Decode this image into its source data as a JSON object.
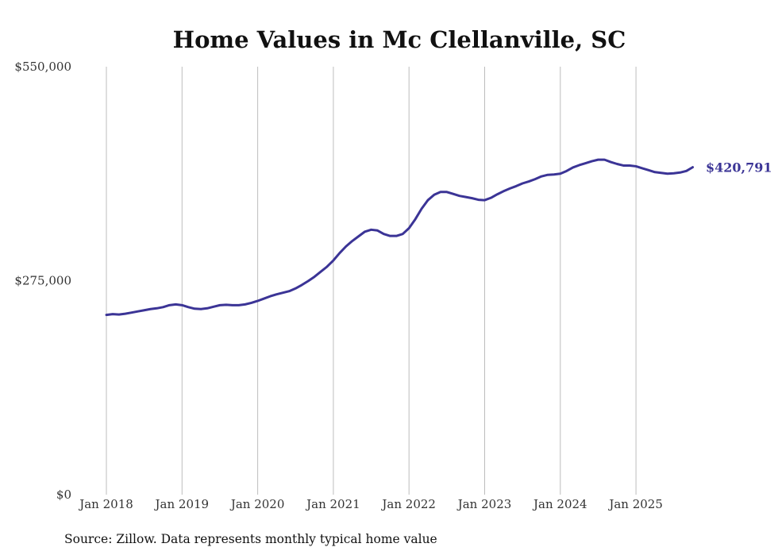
{
  "chart_data": {
    "type": "line",
    "title": "Home Values in Mc Clellanville, SC",
    "xlabel": "",
    "ylabel": "",
    "ylim": [
      0,
      550000
    ],
    "y_ticks": [
      {
        "value": 0,
        "label": "$0"
      },
      {
        "value": 275000,
        "label": "$275,000"
      },
      {
        "value": 550000,
        "label": "$550,000"
      }
    ],
    "x_range": [
      "2018-01",
      "2025-10"
    ],
    "x_ticks": [
      {
        "date": "2018-01",
        "label": "Jan 2018"
      },
      {
        "date": "2019-01",
        "label": "Jan 2019"
      },
      {
        "date": "2020-01",
        "label": "Jan 2020"
      },
      {
        "date": "2021-01",
        "label": "Jan 2021"
      },
      {
        "date": "2022-01",
        "label": "Jan 2022"
      },
      {
        "date": "2023-01",
        "label": "Jan 2023"
      },
      {
        "date": "2024-01",
        "label": "Jan 2024"
      },
      {
        "date": "2025-01",
        "label": "Jan 2025"
      }
    ],
    "grid": {
      "vertical": true,
      "horizontal": false
    },
    "line_color": "#3b3496",
    "series": [
      {
        "points": [
          [
            "2018-01",
            231000
          ],
          [
            "2018-02",
            232000
          ],
          [
            "2018-03",
            231500
          ],
          [
            "2018-04",
            232500
          ],
          [
            "2018-05",
            234000
          ],
          [
            "2018-06",
            235500
          ],
          [
            "2018-07",
            237000
          ],
          [
            "2018-08",
            238500
          ],
          [
            "2018-09",
            239500
          ],
          [
            "2018-10",
            241000
          ],
          [
            "2018-11",
            243500
          ],
          [
            "2018-12",
            244500
          ],
          [
            "2019-01",
            243500
          ],
          [
            "2019-02",
            241000
          ],
          [
            "2019-03",
            239000
          ],
          [
            "2019-04",
            238500
          ],
          [
            "2019-05",
            239500
          ],
          [
            "2019-06",
            241500
          ],
          [
            "2019-07",
            243500
          ],
          [
            "2019-08",
            244000
          ],
          [
            "2019-09",
            243500
          ],
          [
            "2019-10",
            243500
          ],
          [
            "2019-11",
            244500
          ],
          [
            "2019-12",
            246500
          ],
          [
            "2020-01",
            249000
          ],
          [
            "2020-02",
            252000
          ],
          [
            "2020-03",
            255000
          ],
          [
            "2020-04",
            257500
          ],
          [
            "2020-05",
            259500
          ],
          [
            "2020-06",
            261500
          ],
          [
            "2020-07",
            265000
          ],
          [
            "2020-08",
            269500
          ],
          [
            "2020-09",
            274500
          ],
          [
            "2020-10",
            280000
          ],
          [
            "2020-11",
            286500
          ],
          [
            "2020-12",
            293000
          ],
          [
            "2021-01",
            301000
          ],
          [
            "2021-02",
            310500
          ],
          [
            "2021-03",
            319000
          ],
          [
            "2021-04",
            326000
          ],
          [
            "2021-05",
            332000
          ],
          [
            "2021-06",
            338000
          ],
          [
            "2021-07",
            340500
          ],
          [
            "2021-08",
            339500
          ],
          [
            "2021-09",
            335000
          ],
          [
            "2021-10",
            332500
          ],
          [
            "2021-11",
            332500
          ],
          [
            "2021-12",
            335000
          ],
          [
            "2022-01",
            342500
          ],
          [
            "2022-02",
            354000
          ],
          [
            "2022-03",
            367500
          ],
          [
            "2022-04",
            378500
          ],
          [
            "2022-05",
            385500
          ],
          [
            "2022-06",
            389000
          ],
          [
            "2022-07",
            389000
          ],
          [
            "2022-08",
            386500
          ],
          [
            "2022-09",
            384000
          ],
          [
            "2022-10",
            382500
          ],
          [
            "2022-11",
            381000
          ],
          [
            "2022-12",
            379000
          ],
          [
            "2023-01",
            378500
          ],
          [
            "2023-02",
            381500
          ],
          [
            "2023-03",
            386000
          ],
          [
            "2023-04",
            390000
          ],
          [
            "2023-05",
            393500
          ],
          [
            "2023-06",
            396500
          ],
          [
            "2023-07",
            400000
          ],
          [
            "2023-08",
            402500
          ],
          [
            "2023-09",
            405500
          ],
          [
            "2023-10",
            409000
          ],
          [
            "2023-11",
            411000
          ],
          [
            "2023-12",
            411500
          ],
          [
            "2024-01",
            412500
          ],
          [
            "2024-02",
            416000
          ],
          [
            "2024-03",
            420500
          ],
          [
            "2024-04",
            423500
          ],
          [
            "2024-05",
            426000
          ],
          [
            "2024-06",
            428500
          ],
          [
            "2024-07",
            430500
          ],
          [
            "2024-08",
            430500
          ],
          [
            "2024-09",
            427500
          ],
          [
            "2024-10",
            425000
          ],
          [
            "2024-11",
            423000
          ],
          [
            "2024-12",
            423000
          ],
          [
            "2025-01",
            422000
          ],
          [
            "2025-02",
            419500
          ],
          [
            "2025-03",
            417000
          ],
          [
            "2025-04",
            414500
          ],
          [
            "2025-05",
            413500
          ],
          [
            "2025-06",
            412500
          ],
          [
            "2025-07",
            413000
          ],
          [
            "2025-08",
            414000
          ],
          [
            "2025-09",
            416000
          ],
          [
            "2025-10",
            420791
          ]
        ]
      }
    ],
    "end_label": "$420,791",
    "source": "Source: Zillow. Data represents monthly typical home value"
  }
}
